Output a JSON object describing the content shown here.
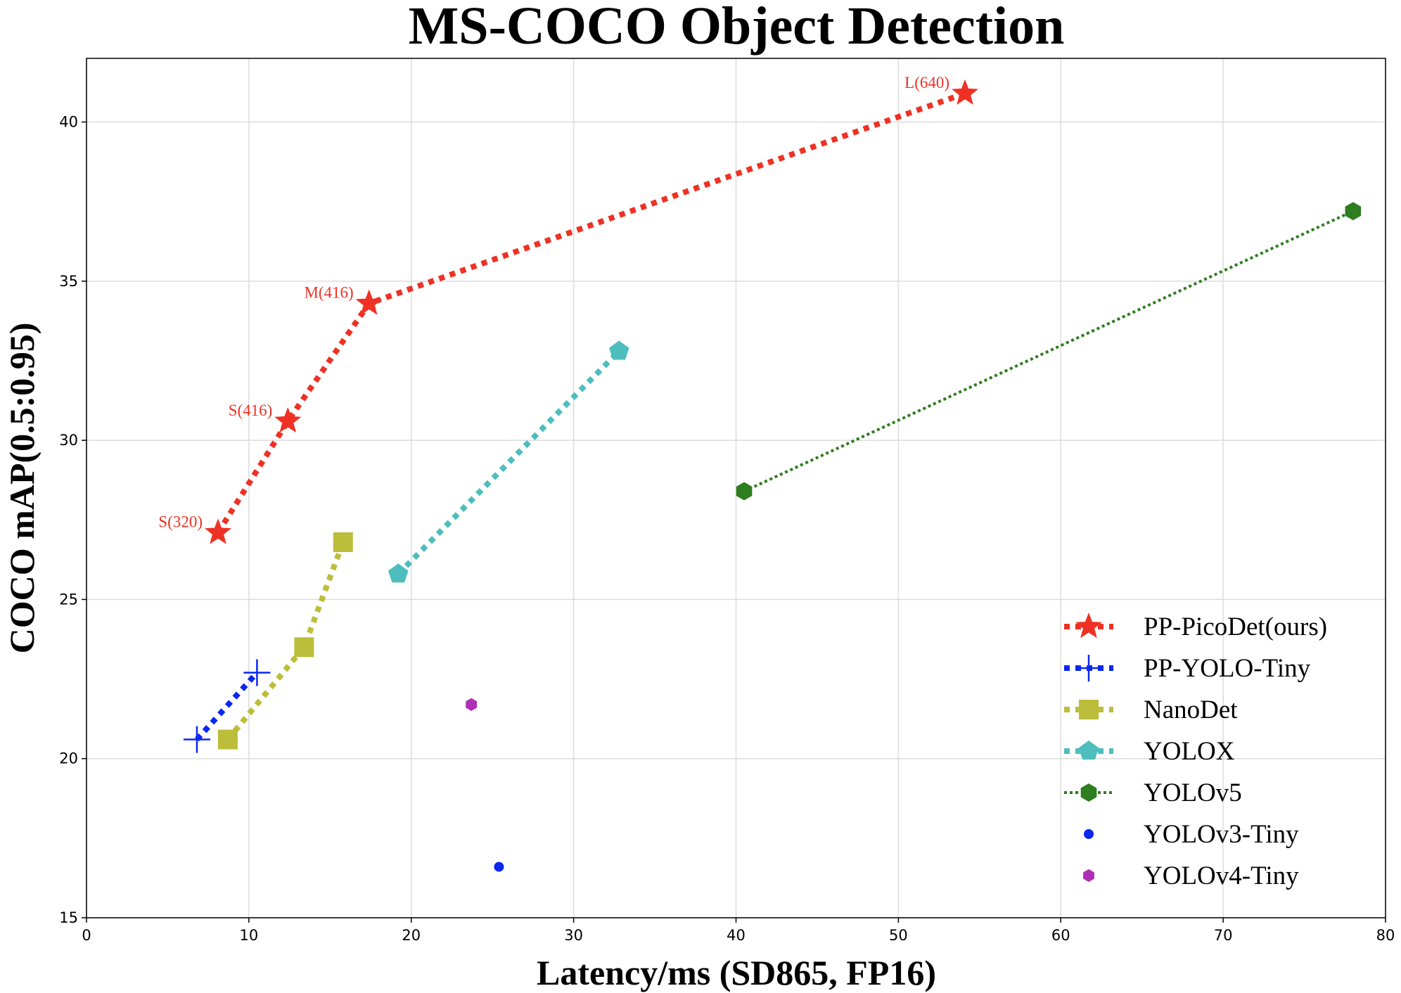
{
  "chart_data": {
    "type": "scatter",
    "title": "MS-COCO Object Detection",
    "xlabel": "Latency/ms (SD865, FP16)",
    "ylabel": "COCO mAP(0.5:0.95)",
    "xlim": [
      0,
      80
    ],
    "ylim": [
      15,
      42
    ],
    "xticks": [
      0,
      10,
      20,
      30,
      40,
      50,
      60,
      70,
      80
    ],
    "yticks": [
      15,
      20,
      25,
      30,
      35,
      40
    ],
    "grid": true,
    "legend_position": "bottom-right",
    "series": [
      {
        "name": "PP-PicoDet(ours)",
        "color": "#ee3124",
        "marker": "star",
        "line": "dotted-thick",
        "x": [
          8.1,
          12.4,
          17.4,
          54.1
        ],
        "y": [
          27.1,
          30.6,
          34.3,
          40.9
        ],
        "labels": [
          "S(320)",
          "S(416)",
          "M(416)",
          "L(640)"
        ]
      },
      {
        "name": "PP-YOLO-Tiny",
        "color": "#0a28f0",
        "marker": "plus",
        "line": "dotted-thick",
        "x": [
          6.8,
          10.5
        ],
        "y": [
          20.6,
          22.7
        ]
      },
      {
        "name": "NanoDet",
        "color": "#bcbd3a",
        "marker": "square",
        "line": "dotted-thick",
        "x": [
          8.7,
          13.4,
          15.8
        ],
        "y": [
          20.6,
          23.5,
          26.8
        ]
      },
      {
        "name": "YOLOX",
        "color": "#4dbdbd",
        "marker": "pentagon",
        "line": "dotted-thick",
        "x": [
          19.2,
          32.8
        ],
        "y": [
          25.8,
          32.8
        ]
      },
      {
        "name": "YOLOv5",
        "color": "#2e7d1e",
        "marker": "hexagon",
        "line": "dotted",
        "x": [
          40.5,
          78.0
        ],
        "y": [
          28.4,
          37.2
        ]
      },
      {
        "name": "YOLOv3-Tiny",
        "color": "#0a28f0",
        "marker": "circle",
        "line": "none",
        "x": [
          25.4
        ],
        "y": [
          16.6
        ]
      },
      {
        "name": "YOLOv4-Tiny",
        "color": "#b02fb5",
        "marker": "hexagon",
        "line": "none",
        "x": [
          23.7
        ],
        "y": [
          21.7
        ]
      }
    ]
  }
}
